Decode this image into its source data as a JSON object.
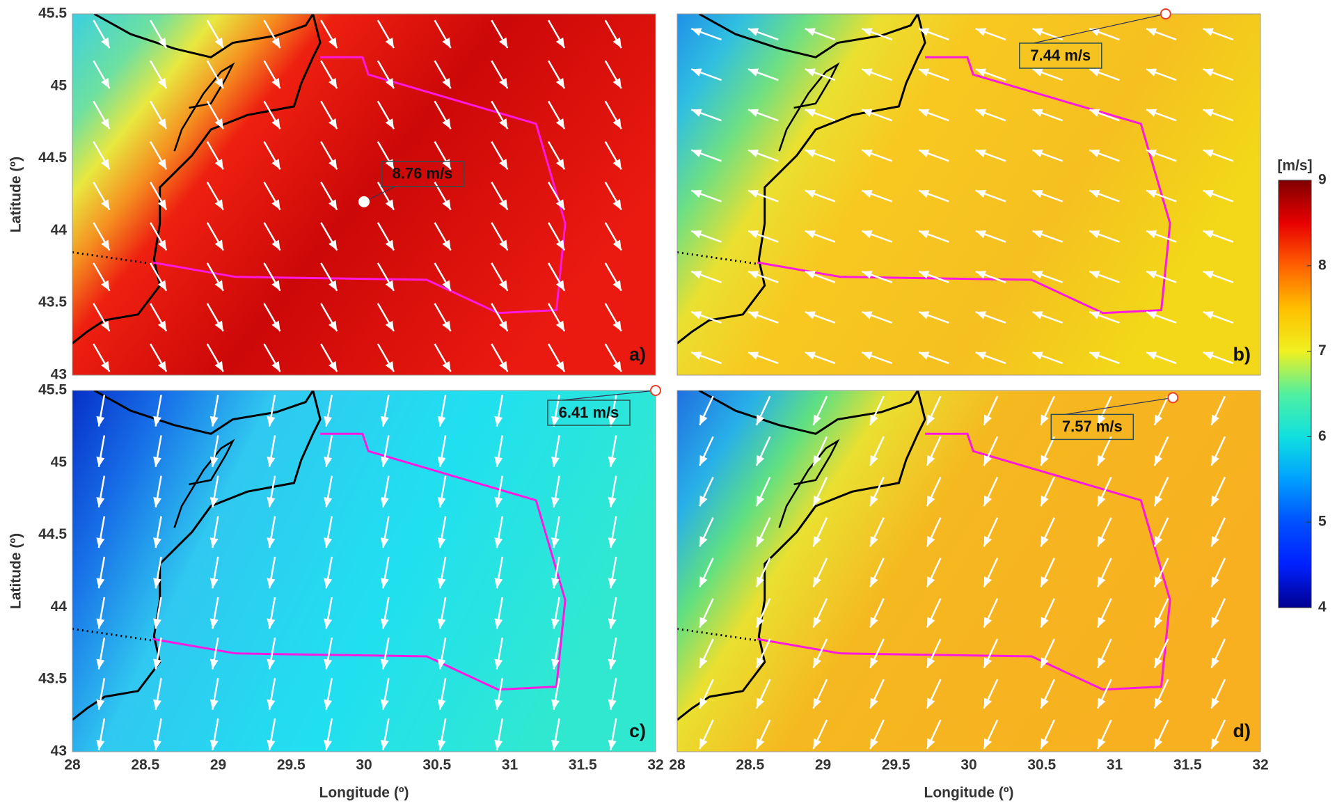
{
  "chart_data": {
    "type": "map",
    "xlabel": "Longitude (º)",
    "ylabel": "Latitude (º)",
    "xlim": [
      28,
      32
    ],
    "ylim": [
      43,
      45.5
    ],
    "xticks": [
      28,
      28.5,
      29,
      29.5,
      30,
      30.5,
      31,
      31.5,
      32
    ],
    "yticks": [
      43,
      43.5,
      44,
      44.5,
      45,
      45.5
    ],
    "colorbar": {
      "label": "[m/s]",
      "lim": [
        4,
        9
      ],
      "ticks": [
        4,
        5,
        6,
        7,
        8,
        9
      ]
    },
    "panels": [
      {
        "label": "a)",
        "marker": {
          "lon": 30,
          "lat": 44.2
        },
        "marker_stroke": "#ffffff",
        "value": 8.76,
        "value_label": "8.76 m/s",
        "wind_direction_deg": 150
      },
      {
        "label": "b)",
        "marker": {
          "lon": 31.35,
          "lat": 45.5
        },
        "marker_stroke": "#e8402a",
        "value": 7.44,
        "value_label": "7.44 m/s",
        "wind_direction_deg": 290
      },
      {
        "label": "c)",
        "marker": {
          "lon": 32,
          "lat": 45.5
        },
        "marker_stroke": "#e8402a",
        "value": 6.41,
        "value_label": "6.41 m/s",
        "wind_direction_deg": 190
      },
      {
        "label": "d)",
        "marker": {
          "lon": 31.4,
          "lat": 45.45
        },
        "marker_stroke": "#e8402a",
        "value": 7.57,
        "value_label": "7.57 m/s",
        "wind_direction_deg": 205
      }
    ]
  }
}
